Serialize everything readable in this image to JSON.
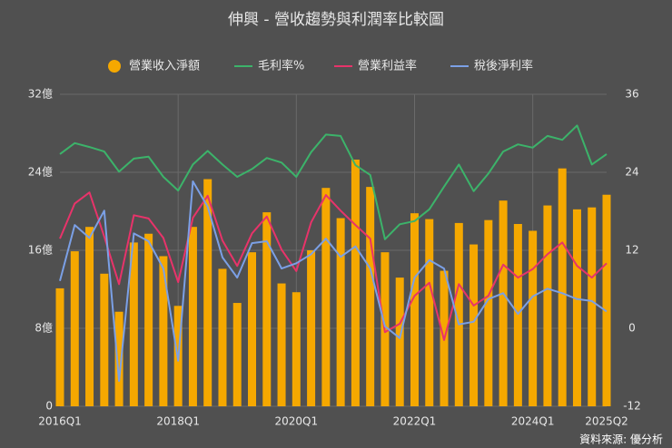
{
  "chart_data": {
    "type": "bar",
    "title": "伸興 - 營收趨勢與利潤率比較圖",
    "source": "資料來源: 優分析",
    "legend": "top",
    "grid": true,
    "categories": [
      "2016Q1",
      null,
      null,
      null,
      null,
      null,
      null,
      null,
      "2018Q1",
      null,
      null,
      null,
      null,
      null,
      null,
      null,
      "2020Q1",
      null,
      null,
      null,
      null,
      null,
      null,
      null,
      "2022Q1",
      null,
      null,
      null,
      null,
      null,
      null,
      null,
      "2024Q1",
      null,
      null,
      null,
      null,
      "2025Q2"
    ],
    "ylim": [
      0,
      32
    ],
    "yticks": [
      0,
      {
        "value": 8,
        "label": "8億"
      },
      {
        "value": 16,
        "label": "16億"
      },
      {
        "value": 24,
        "label": "24億"
      },
      {
        "value": 32,
        "label": "32億"
      }
    ],
    "y2lim": [
      -12,
      36
    ],
    "y2ticks": [
      -12,
      0,
      12,
      24,
      36
    ],
    "series": [
      {
        "name": "營業收入淨額",
        "type": "bar",
        "color": "#f5a800",
        "values": [
          12.1,
          15.9,
          18.4,
          13.6,
          9.7,
          16.8,
          17.7,
          15.4,
          10.3,
          18.4,
          23.3,
          14.1,
          10.6,
          15.8,
          19.9,
          12.6,
          11.7,
          16.0,
          22.4,
          19.3,
          25.3,
          22.5,
          15.8,
          13.2,
          19.8,
          19.2,
          13.9,
          18.8,
          16.6,
          19.1,
          21.1,
          18.7,
          18.0,
          20.6,
          24.4,
          20.2,
          20.4,
          21.7
        ]
      },
      {
        "name": "毛利率%",
        "type": "line",
        "axis": "y2",
        "color": "#3cb36a",
        "values": [
          26.8,
          28.5,
          27.9,
          27.2,
          24.1,
          26.1,
          26.4,
          23.3,
          21.2,
          25.2,
          27.3,
          25.2,
          23.3,
          24.5,
          26.2,
          25.5,
          23.3,
          27.1,
          29.8,
          29.6,
          25.1,
          23.6,
          13.7,
          16.0,
          16.5,
          18.3,
          21.8,
          25.2,
          21.1,
          23.8,
          27.2,
          28.3,
          27.8,
          29.6,
          29.0,
          31.2,
          25.2,
          26.8
        ]
      },
      {
        "name": "營業利益率",
        "type": "line",
        "axis": "y2",
        "color": "#e8336a",
        "values": [
          13.8,
          19.2,
          20.9,
          14.1,
          6.8,
          17.4,
          16.9,
          13.9,
          7.1,
          17.0,
          20.4,
          13.5,
          9.6,
          14.6,
          17.2,
          12.1,
          8.8,
          16.3,
          20.5,
          18.1,
          15.9,
          13.8,
          -0.6,
          0.7,
          5.0,
          7.0,
          -1.8,
          6.8,
          3.5,
          5.0,
          9.8,
          7.8,
          9.1,
          11.4,
          13.2,
          9.6,
          7.8,
          10.0
        ]
      },
      {
        "name": "稅後淨利率",
        "type": "line",
        "axis": "y2",
        "color": "#7ba0e6",
        "values": [
          7.3,
          15.9,
          13.9,
          18.1,
          -8.1,
          14.6,
          13.4,
          9.2,
          -5.0,
          22.6,
          18.7,
          10.9,
          7.8,
          13.1,
          13.4,
          9.2,
          10.0,
          11.4,
          13.8,
          11.0,
          12.6,
          9.2,
          0.3,
          -1.5,
          7.8,
          10.5,
          9.2,
          0.6,
          1.0,
          4.5,
          5.4,
          2.2,
          4.9,
          6.1,
          5.4,
          4.5,
          4.2,
          2.6
        ]
      }
    ]
  }
}
